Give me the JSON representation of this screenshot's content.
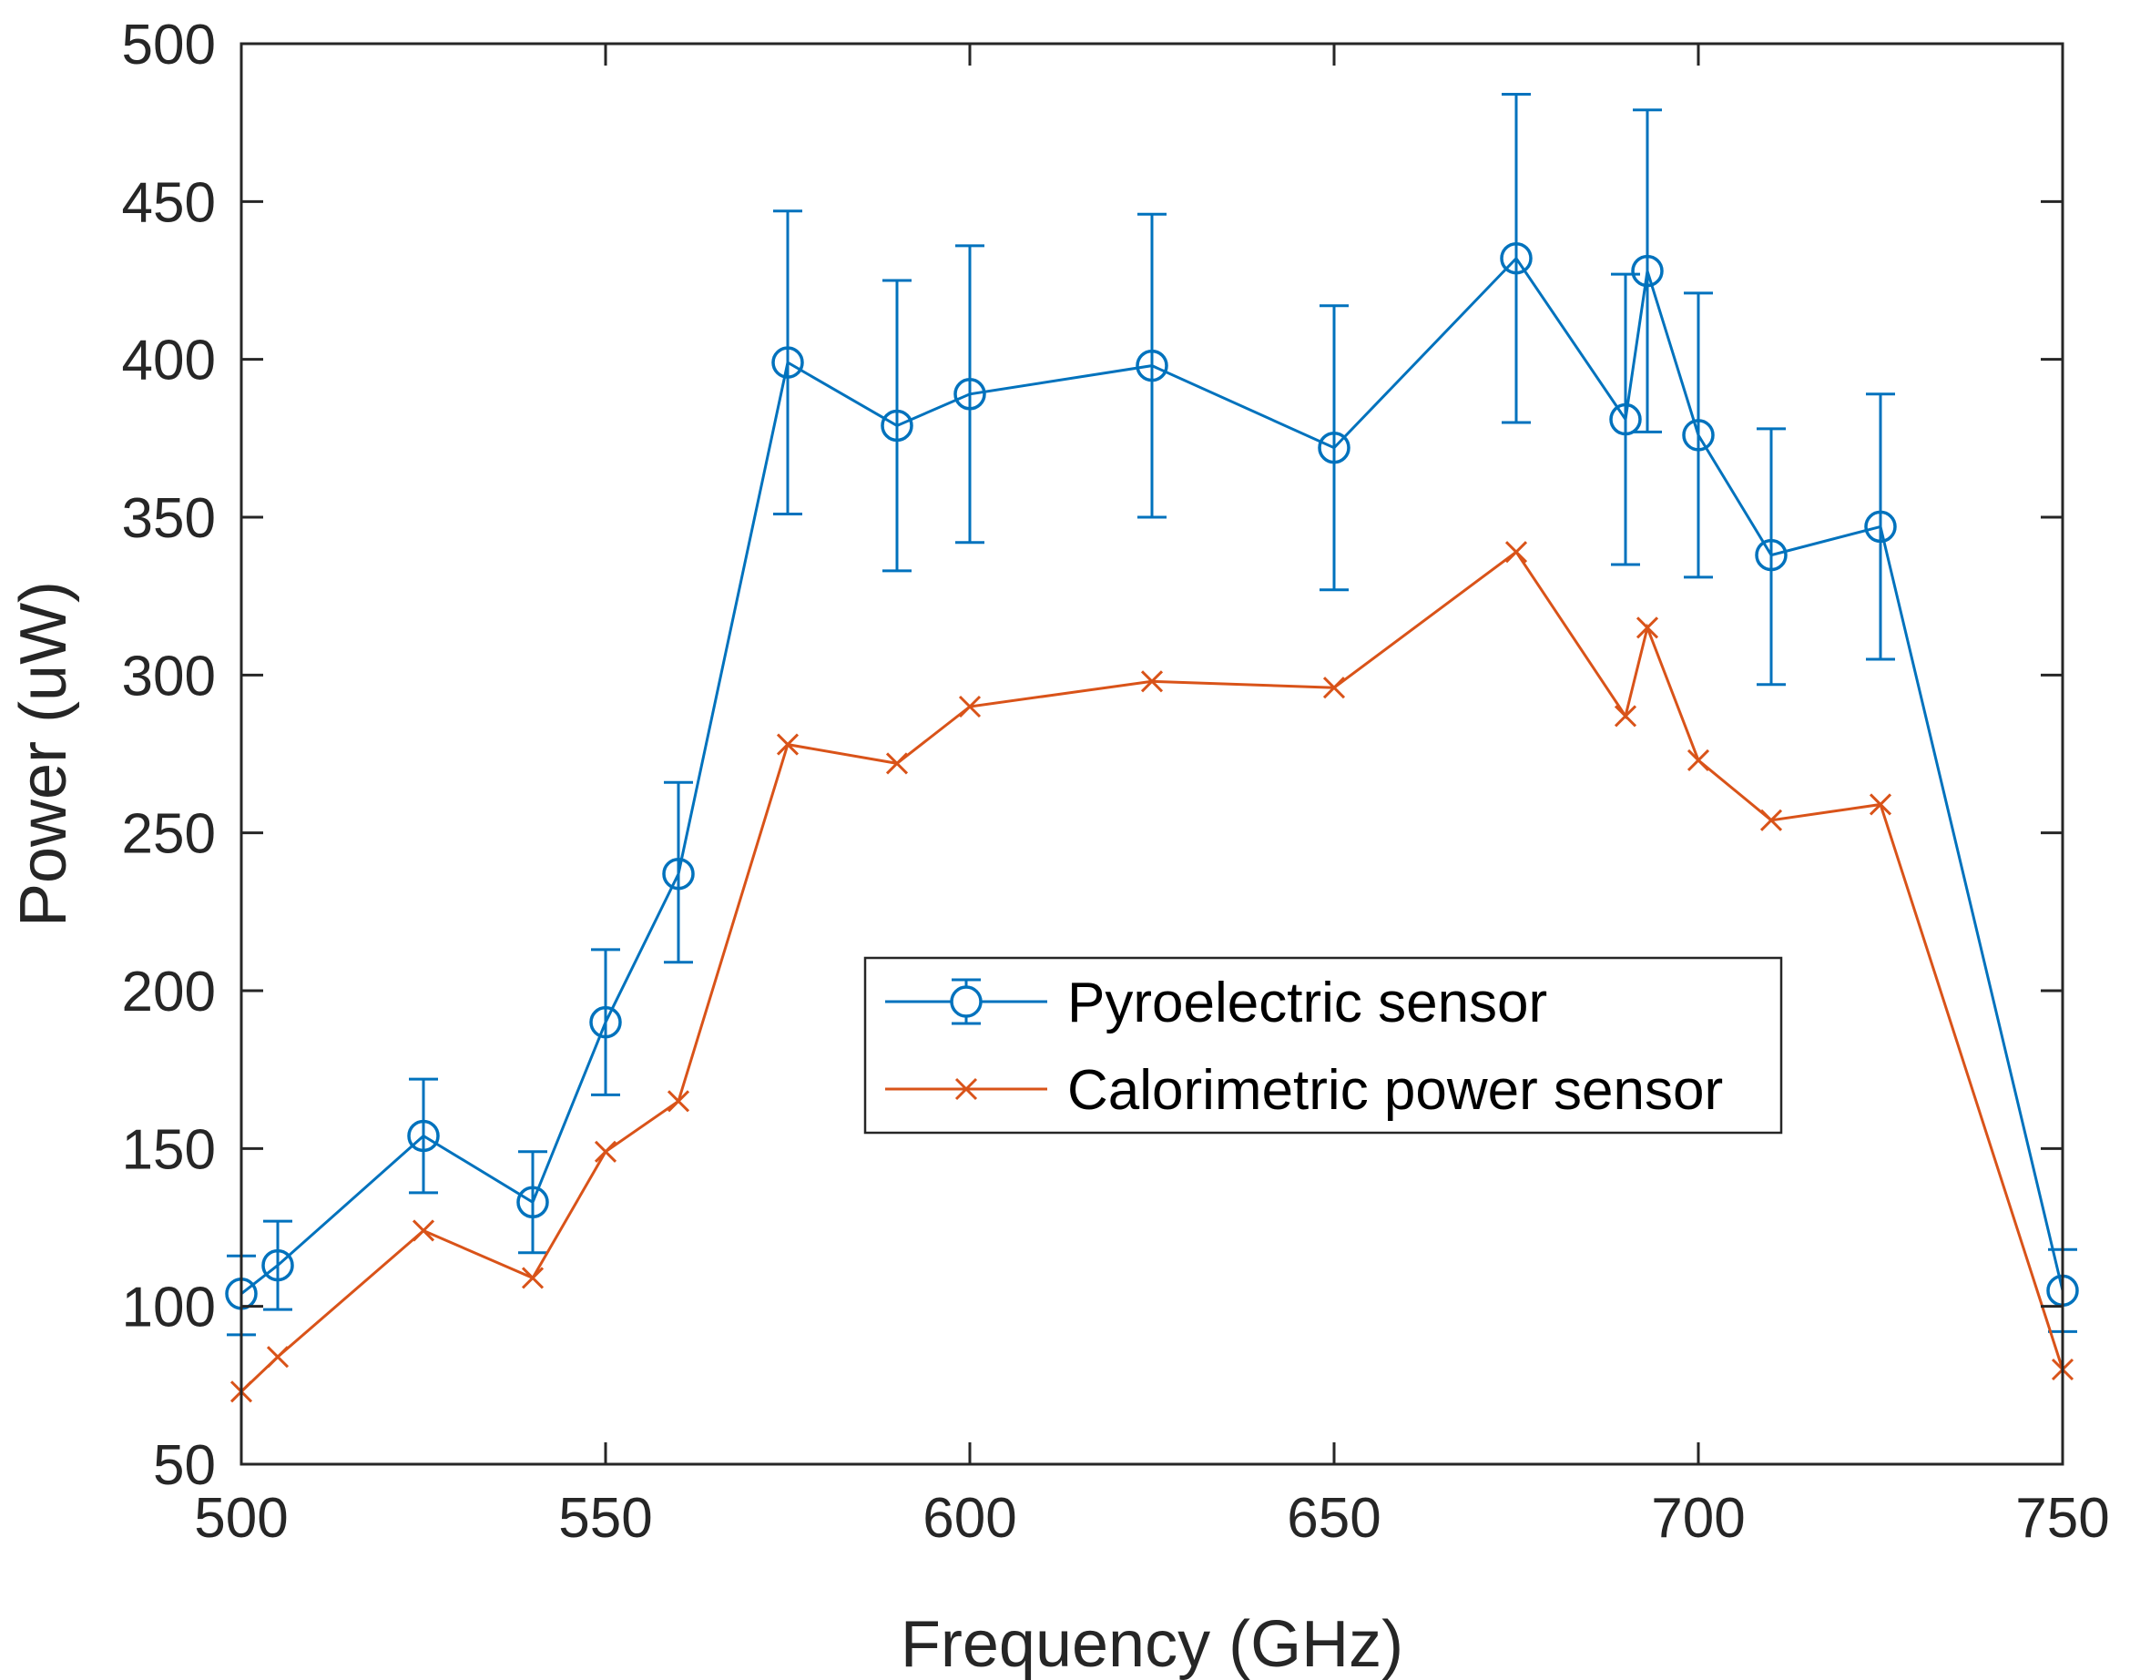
{
  "chart_data": {
    "type": "line",
    "title": "",
    "xlabel": "Frequency (GHz)",
    "ylabel": "Power (uW)",
    "xlim": [
      500,
      750
    ],
    "ylim": [
      50,
      500
    ],
    "xticks": [
      500,
      550,
      600,
      650,
      700,
      750
    ],
    "yticks": [
      50,
      100,
      150,
      200,
      250,
      300,
      350,
      400,
      450,
      500
    ],
    "legend_position": "center-right",
    "series": [
      {
        "name": "Pyroelectric sensor",
        "color": "#0072bd",
        "marker": "circle",
        "error_bars": true,
        "points": [
          {
            "x": 500,
            "y": 104,
            "lo": 91,
            "hi": 116
          },
          {
            "x": 505,
            "y": 113,
            "lo": 99,
            "hi": 127
          },
          {
            "x": 525,
            "y": 154,
            "lo": 136,
            "hi": 172
          },
          {
            "x": 540,
            "y": 133,
            "lo": 117,
            "hi": 149
          },
          {
            "x": 550,
            "y": 190,
            "lo": 167,
            "hi": 213
          },
          {
            "x": 560,
            "y": 237,
            "lo": 209,
            "hi": 266
          },
          {
            "x": 575,
            "y": 399,
            "lo": 351,
            "hi": 447
          },
          {
            "x": 590,
            "y": 379,
            "lo": 333,
            "hi": 425
          },
          {
            "x": 600,
            "y": 389,
            "lo": 342,
            "hi": 436
          },
          {
            "x": 625,
            "y": 398,
            "lo": 350,
            "hi": 446
          },
          {
            "x": 650,
            "y": 372,
            "lo": 327,
            "hi": 417
          },
          {
            "x": 675,
            "y": 432,
            "lo": 380,
            "hi": 484
          },
          {
            "x": 690,
            "y": 381,
            "lo": 335,
            "hi": 427
          },
          {
            "x": 693,
            "y": 428,
            "lo": 377,
            "hi": 479
          },
          {
            "x": 700,
            "y": 376,
            "lo": 331,
            "hi": 421
          },
          {
            "x": 710,
            "y": 338,
            "lo": 297,
            "hi": 378
          },
          {
            "x": 725,
            "y": 347,
            "lo": 305,
            "hi": 389
          },
          {
            "x": 750,
            "y": 105,
            "lo": 92,
            "hi": 118
          }
        ]
      },
      {
        "name": "Calorimetric power sensor",
        "color": "#d95319",
        "marker": "x",
        "error_bars": false,
        "points": [
          {
            "x": 500,
            "y": 73
          },
          {
            "x": 505,
            "y": 84
          },
          {
            "x": 525,
            "y": 124
          },
          {
            "x": 540,
            "y": 109
          },
          {
            "x": 550,
            "y": 149
          },
          {
            "x": 560,
            "y": 165
          },
          {
            "x": 575,
            "y": 278
          },
          {
            "x": 590,
            "y": 272
          },
          {
            "x": 600,
            "y": 290
          },
          {
            "x": 625,
            "y": 298
          },
          {
            "x": 650,
            "y": 296
          },
          {
            "x": 675,
            "y": 339
          },
          {
            "x": 690,
            "y": 287
          },
          {
            "x": 693,
            "y": 315
          },
          {
            "x": 700,
            "y": 273
          },
          {
            "x": 710,
            "y": 254
          },
          {
            "x": 725,
            "y": 259
          },
          {
            "x": 750,
            "y": 80
          }
        ]
      }
    ]
  }
}
